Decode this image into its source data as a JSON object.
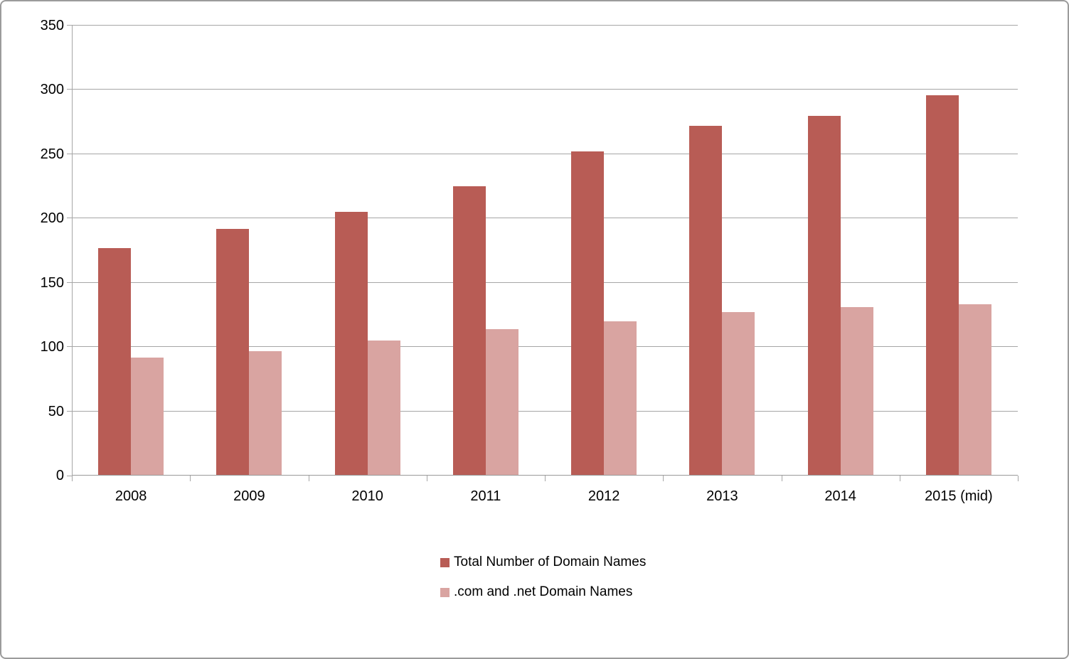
{
  "figure": {
    "background": "#ffffff",
    "border_color": "#9b9b9b"
  },
  "chart_data": {
    "type": "bar",
    "title": "",
    "categories": [
      "2008",
      "2009",
      "2010",
      "2011",
      "2012",
      "2013",
      "2014",
      "2015 (mid)"
    ],
    "series": [
      {
        "name": "Total Number of Domain Names",
        "color": "#b85c55",
        "values": [
          177,
          192,
          205,
          225,
          252,
          272,
          280,
          296
        ]
      },
      {
        "name": ".com and .net Domain Names",
        "color": "#d9a4a1",
        "values": [
          92,
          97,
          105,
          114,
          120,
          127,
          131,
          133
        ]
      }
    ],
    "xlabel": "",
    "ylabel": "",
    "ylim": [
      0,
      350
    ],
    "yticks": [
      0,
      50,
      100,
      150,
      200,
      250,
      300,
      350
    ],
    "grid": "horizontal",
    "gridline_color": "#a6a6a6",
    "axis_color": "#a6a6a6",
    "text_color": "#000000",
    "legend_position": "bottom-center"
  }
}
